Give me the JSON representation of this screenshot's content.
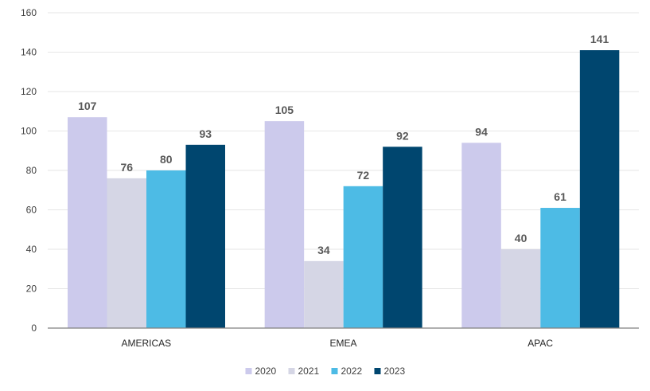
{
  "chart_data": {
    "type": "bar",
    "categories": [
      "AMERICAS",
      "EMEA",
      "APAC"
    ],
    "series": [
      {
        "name": "2020",
        "color": "#cccaec",
        "values": [
          107,
          105,
          94
        ]
      },
      {
        "name": "2021",
        "color": "#d5d6e5",
        "values": [
          76,
          34,
          40
        ]
      },
      {
        "name": "2022",
        "color": "#4dbbe5",
        "values": [
          80,
          72,
          61
        ]
      },
      {
        "name": "2023",
        "color": "#00466f",
        "values": [
          93,
          92,
          141
        ]
      }
    ],
    "title": "",
    "xlabel": "",
    "ylabel": "",
    "ylim": [
      0,
      160
    ],
    "yticks": [
      0,
      20,
      40,
      60,
      80,
      100,
      120,
      140,
      160
    ],
    "grid": true,
    "legend_position": "bottom",
    "data_labels": true
  }
}
